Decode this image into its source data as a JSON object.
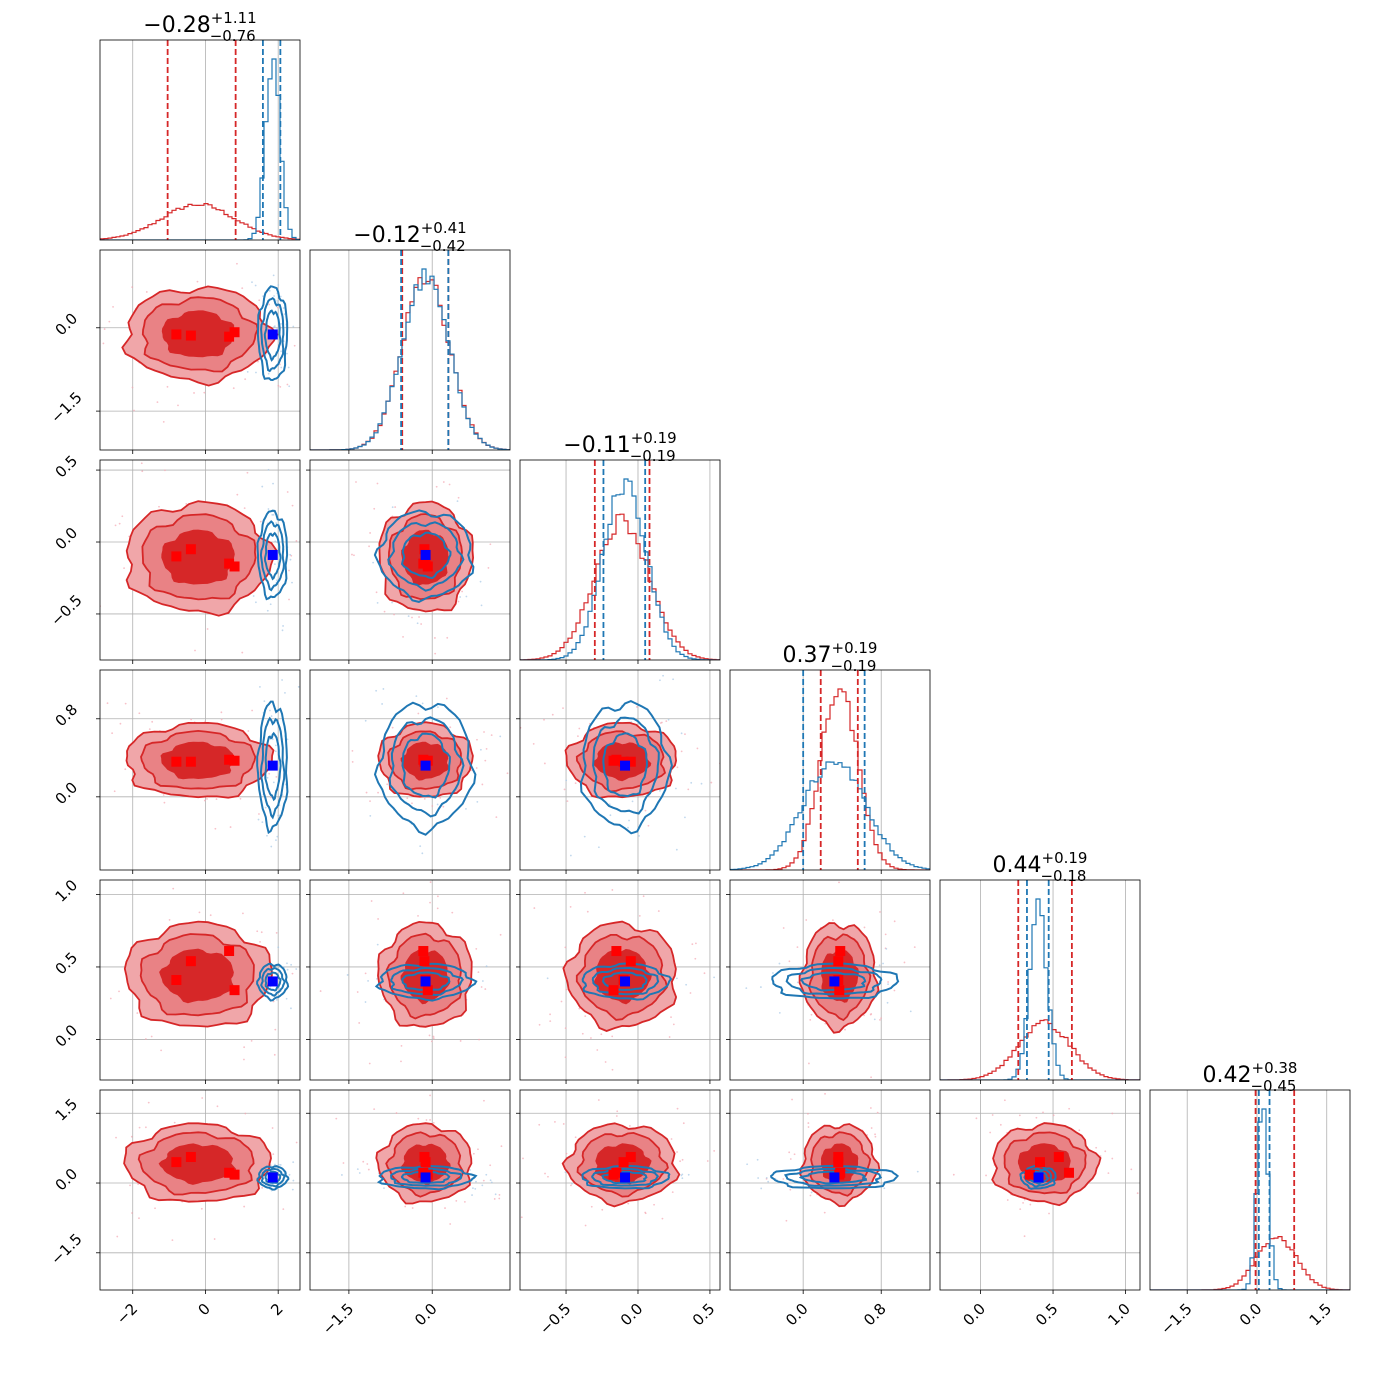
{
  "chart_data": {
    "type": "corner",
    "n_params": 6,
    "colors": {
      "red": "#d62728",
      "blue": "#1f77b4",
      "marker_red": "#ff0000",
      "marker_blue": "#0000ff",
      "grid": "#b0b0b0"
    },
    "grid": true,
    "params": [
      {
        "range": [
          -2.9,
          2.6
        ],
        "ticks": [
          -2,
          0,
          2
        ],
        "tick_labels": [
          "−2",
          "0",
          "2"
        ],
        "title": {
          "value": "−0.28",
          "plus": "+1.11",
          "minus": "−0.76"
        },
        "red_q": [
          -1.04,
          0.83
        ],
        "blue_q": [
          1.58,
          2.06
        ],
        "red_mean": -0.2,
        "red_sd": 1.0,
        "blue_mean": 1.85,
        "blue_sd": 0.2,
        "blue_pt": 1.85
      },
      {
        "range": [
          -2.2,
          1.4
        ],
        "ticks": [
          -1.5,
          0.0
        ],
        "tick_labels": [
          "−1.5",
          "0.0"
        ],
        "title": {
          "value": "−0.12",
          "plus": "+0.41",
          "minus": "−0.42"
        },
        "red_q": [
          -0.54,
          0.29
        ],
        "blue_q": [
          -0.56,
          0.29
        ],
        "red_mean": -0.12,
        "red_sd": 0.42,
        "blue_mean": -0.12,
        "blue_sd": 0.42,
        "blue_pt": -0.12
      },
      {
        "range": [
          -0.82,
          0.57
        ],
        "ticks": [
          -0.5,
          0.0,
          0.5
        ],
        "tick_labels": [
          "−0.5",
          "0.0",
          "0.5"
        ],
        "title": {
          "value": "−0.11",
          "plus": "+0.19",
          "minus": "−0.19"
        },
        "red_q": [
          -0.3,
          0.08
        ],
        "blue_q": [
          -0.24,
          0.05
        ],
        "red_mean": -0.11,
        "red_sd": 0.19,
        "blue_mean": -0.09,
        "blue_sd": 0.15,
        "blue_pt": -0.09
      },
      {
        "range": [
          -0.75,
          1.3
        ],
        "ticks": [
          0.0,
          0.8
        ],
        "tick_labels": [
          "0.0",
          "0.8"
        ],
        "title": {
          "value": "0.37",
          "plus": "+0.19",
          "minus": "−0.19"
        },
        "red_q": [
          0.18,
          0.56
        ],
        "blue_q": [
          0.0,
          0.63
        ],
        "red_mean": 0.37,
        "red_sd": 0.19,
        "blue_mean": 0.32,
        "blue_sd": 0.32,
        "blue_pt": 0.32
      },
      {
        "range": [
          -0.28,
          1.1
        ],
        "ticks": [
          0.0,
          0.5,
          1.0
        ],
        "tick_labels": [
          "0.0",
          "0.5",
          "1.0"
        ],
        "title": {
          "value": "0.44",
          "plus": "+0.19",
          "minus": "−0.18"
        },
        "red_q": [
          0.26,
          0.63
        ],
        "blue_q": [
          0.32,
          0.47
        ],
        "red_mean": 0.44,
        "red_sd": 0.18,
        "blue_mean": 0.4,
        "blue_sd": 0.06,
        "blue_pt": 0.4
      },
      {
        "range": [
          -2.3,
          2.0
        ],
        "ticks": [
          -1.5,
          0.0,
          1.5
        ],
        "tick_labels": [
          "−1.5",
          "0.0",
          "1.5"
        ],
        "title": {
          "value": "0.42",
          "plus": "+0.38",
          "minus": "−0.45"
        },
        "red_q": [
          -0.03,
          0.8
        ],
        "blue_q": [
          0.04,
          0.27
        ],
        "red_mean": 0.42,
        "red_sd": 0.42,
        "blue_mean": 0.12,
        "blue_sd": 0.12,
        "blue_pt": 0.12
      }
    ],
    "red_points": [
      [
        -0.8,
        -0.12,
        -0.1,
        0.36,
        0.41,
        0.45
      ],
      [
        -0.4,
        -0.14,
        -0.05,
        0.36,
        0.54,
        0.56
      ],
      [
        0.65,
        -0.16,
        -0.15,
        0.38,
        0.61,
        0.22
      ],
      [
        0.8,
        -0.08,
        -0.17,
        0.37,
        0.34,
        0.18
      ]
    ]
  }
}
